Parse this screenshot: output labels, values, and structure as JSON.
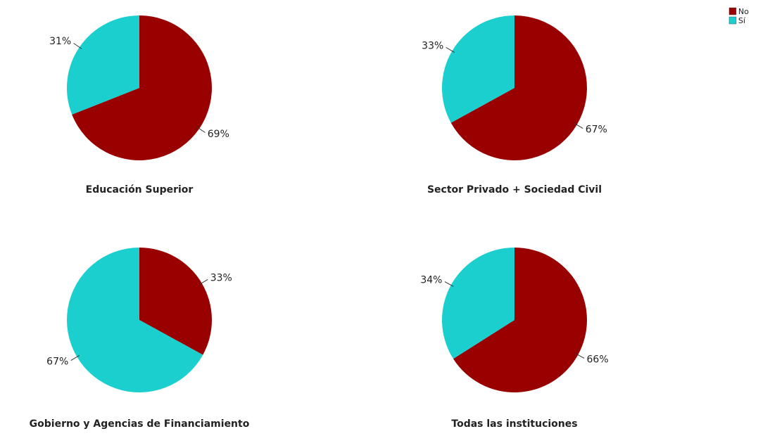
{
  "chart_data": [
    {
      "type": "pie",
      "title": "Educación Superior",
      "categories": [
        "No",
        "Sí"
      ],
      "values": [
        69,
        31
      ],
      "value_labels": [
        "69%",
        "31%"
      ],
      "colors": [
        "#990000",
        "#1ccfcf"
      ]
    },
    {
      "type": "pie",
      "title": "Sector Privado + Sociedad Civil",
      "categories": [
        "No",
        "Sí"
      ],
      "values": [
        67,
        33
      ],
      "value_labels": [
        "67%",
        "33%"
      ],
      "colors": [
        "#990000",
        "#1ccfcf"
      ]
    },
    {
      "type": "pie",
      "title": "Gobierno y Agencias de Financiamiento",
      "categories": [
        "No",
        "Sí"
      ],
      "values": [
        33,
        67
      ],
      "value_labels": [
        "33%",
        "67%"
      ],
      "colors": [
        "#990000",
        "#1ccfcf"
      ]
    },
    {
      "type": "pie",
      "title": "Todas las instituciones",
      "categories": [
        "No",
        "Sí"
      ],
      "values": [
        66,
        34
      ],
      "value_labels": [
        "66%",
        "34%"
      ],
      "colors": [
        "#990000",
        "#1ccfcf"
      ]
    }
  ]
}
